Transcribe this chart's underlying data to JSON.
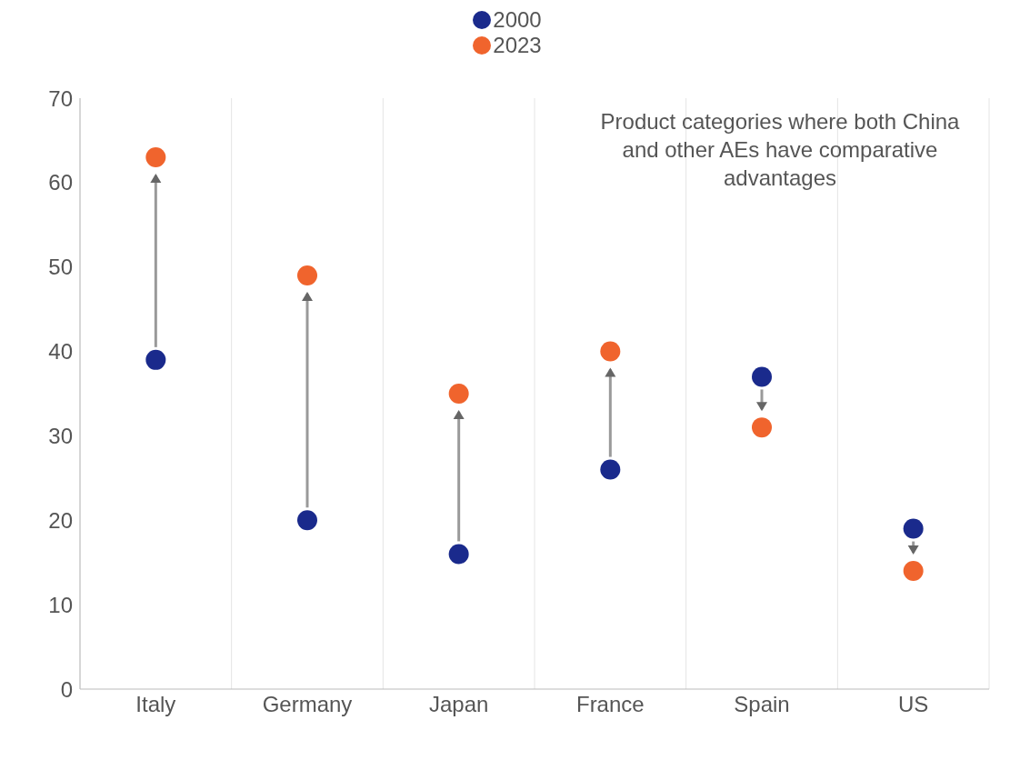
{
  "chart_data": {
    "type": "scatter",
    "categories": [
      "Italy",
      "Germany",
      "Japan",
      "France",
      "Spain",
      "US"
    ],
    "series": [
      {
        "name": "2000",
        "color": "#1a2a8c",
        "values": [
          39,
          20,
          16,
          26,
          37,
          19
        ]
      },
      {
        "name": "2023",
        "color": "#f0642d",
        "values": [
          63,
          49,
          35,
          40,
          31,
          14
        ]
      }
    ],
    "ylim": [
      0,
      70
    ],
    "yticks": [
      0,
      10,
      20,
      30,
      40,
      50,
      60,
      70
    ],
    "grid": "x",
    "legend": "top",
    "marker": "circle",
    "annotations": [
      "Product categories where both China and other AEs have comparative advantages"
    ]
  }
}
